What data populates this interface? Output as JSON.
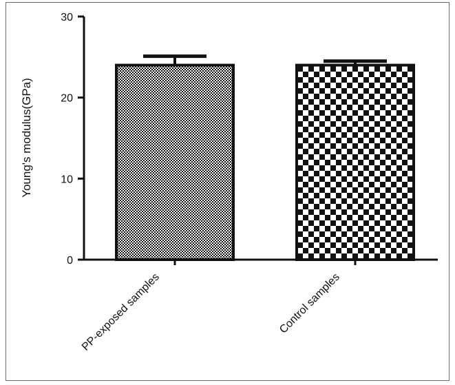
{
  "chart_data": {
    "type": "bar",
    "categories": [
      "PP-exposed samples",
      "Control samples"
    ],
    "values": [
      24,
      24
    ],
    "error": [
      1.1,
      0.5
    ],
    "title": "",
    "xlabel": "",
    "ylabel": "Young's modulus(GPa)",
    "ylim": [
      0,
      30
    ],
    "yticks": [
      "0",
      "10",
      "20",
      "30"
    ],
    "grid": false,
    "legend": "none",
    "colors": {
      "ink": "#111111",
      "frame": "#6e6e6e"
    },
    "patterns": [
      "fine-check",
      "coarse-check"
    ]
  }
}
